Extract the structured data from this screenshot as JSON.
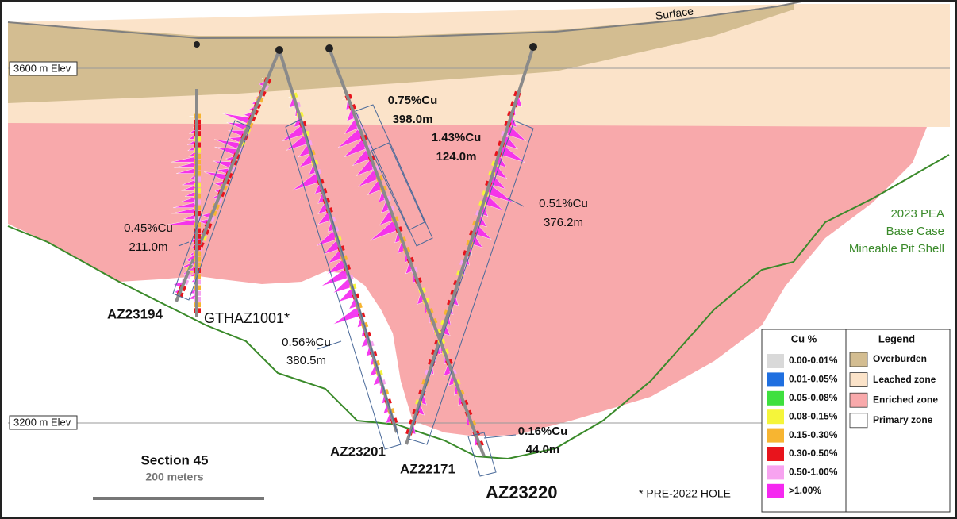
{
  "surface_label": "Surface",
  "elevations": [
    "3600 m Elev",
    "3200 m Elev"
  ],
  "holes": [
    "AZ23194",
    "GTHAZ1001*",
    "AZ23201",
    "AZ22171",
    "AZ23220"
  ],
  "intercepts": [
    {
      "grade": "0.45%Cu",
      "length": "211.0m"
    },
    {
      "grade": "0.56%Cu",
      "length": "380.5m"
    },
    {
      "grade": "0.75%Cu",
      "length": "398.0m"
    },
    {
      "grade": "1.43%Cu",
      "length": "124.0m"
    },
    {
      "grade": "0.51%Cu",
      "length": "376.2m"
    },
    {
      "grade": "0.16%Cu",
      "length": "44.0m"
    }
  ],
  "pit_shell_label": [
    "2023 PEA",
    "Base Case",
    "Mineable Pit Shell"
  ],
  "scale": {
    "title": "Section 45",
    "length": "200 meters"
  },
  "note": "* PRE-2022 HOLE",
  "cu_legend": {
    "title": "Cu %",
    "items": [
      {
        "label": "0.00-0.01%",
        "color": "#d9d9d9"
      },
      {
        "label": "0.01-0.05%",
        "color": "#1f6fe0"
      },
      {
        "label": "0.05-0.08%",
        "color": "#3ee03e"
      },
      {
        "label": "0.08-0.15%",
        "color": "#f5f53a"
      },
      {
        "label": "0.15-0.30%",
        "color": "#f7b531"
      },
      {
        "label": "0.30-0.50%",
        "color": "#e8141c"
      },
      {
        "label": "0.50-1.00%",
        "color": "#f7a3f0"
      },
      {
        "label": ">1.00%",
        "color": "#f528f0"
      }
    ]
  },
  "zone_legend": {
    "title": "Legend",
    "items": [
      {
        "label": "Overburden",
        "color": "#d3bd91"
      },
      {
        "label": "Leached zone",
        "color": "#fbe3c9"
      },
      {
        "label": "Enriched zone",
        "color": "#f8a9ab"
      },
      {
        "label": "Primary zone",
        "color": "#ffffff"
      }
    ]
  }
}
